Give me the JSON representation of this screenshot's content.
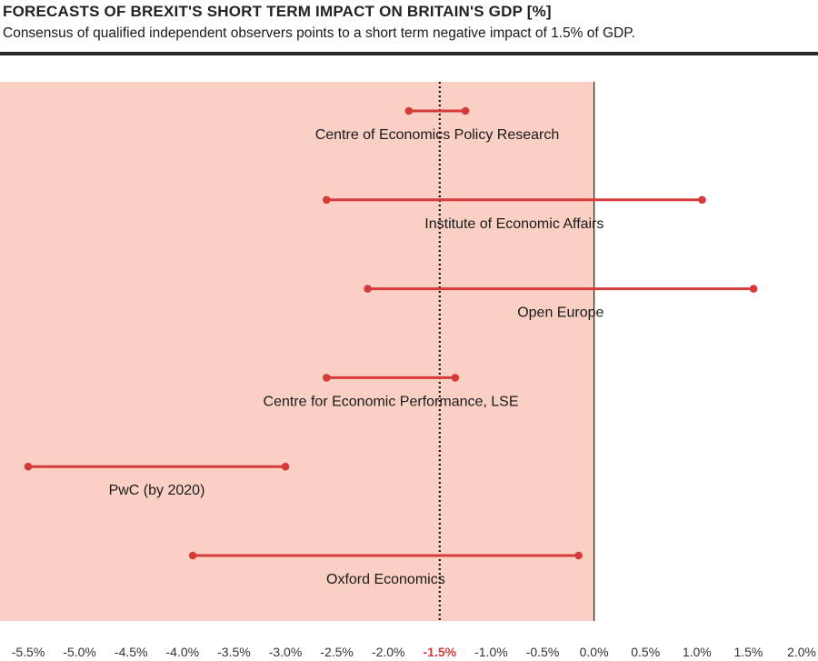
{
  "chart_data": {
    "type": "range",
    "title": "FORECASTS OF BREXIT'S SHORT TERM IMPACT ON BRITAIN'S GDP [%]",
    "subtitle": "Consensus of qualified independent observers points to a short term negative impact of 1.5% of GDP.",
    "xlim": [
      -5.6,
      2.0
    ],
    "x_ticks": [
      -5.5,
      -5.0,
      -4.5,
      -4.0,
      -3.5,
      -3.0,
      -2.5,
      -2.0,
      -1.5,
      -1.0,
      -0.5,
      0.0,
      0.5,
      1.0,
      1.5,
      2.0
    ],
    "x_tick_labels": [
      "-5.5%",
      "-5.0%",
      "-4.5%",
      "-4.0%",
      "-3.5%",
      "-3.0%",
      "-2.5%",
      "-2.0%",
      "-1.5%",
      "-1.0%",
      "-0.5%",
      "0.0%",
      "0.5%",
      "1.0%",
      "1.5%",
      "2.0%"
    ],
    "highlight_tick": "-1.5%",
    "consensus": -1.5,
    "shaded_region": [
      -5.6,
      0.0
    ],
    "ranges": [
      {
        "name": "Centre of Economics Policy Research",
        "low": -1.8,
        "high": -1.25
      },
      {
        "name": "Institute of Economic Affairs",
        "low": -2.6,
        "high": 1.05
      },
      {
        "name": "Open Europe",
        "low": -2.2,
        "high": 1.55
      },
      {
        "name": "Centre for Economic Performance, LSE",
        "low": -2.6,
        "high": -1.35
      },
      {
        "name": "PwC (by 2020)",
        "low": -5.5,
        "high": -3.0
      },
      {
        "name": "Oxford Economics",
        "low": -3.9,
        "high": -0.15
      }
    ],
    "colors": {
      "range": "#d63b3b",
      "shade": "#f9d0c3",
      "zero_line": "#222222",
      "consensus_line": "#111111"
    }
  }
}
